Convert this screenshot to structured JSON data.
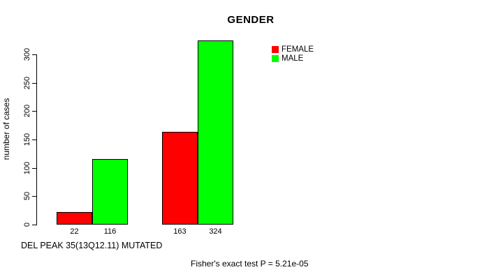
{
  "chart_data": {
    "type": "bar",
    "title": "GENDER",
    "ylabel": "number of cases",
    "xlabel": "DEL PEAK 35(13Q12.11) MUTATED",
    "annotation": "Fisher's exact test P = 5.21e-05",
    "ylim": [
      0,
      300
    ],
    "yticks": [
      0,
      50,
      100,
      150,
      200,
      250,
      300
    ],
    "grid": false,
    "legend_position": "top-right",
    "groups": 2,
    "series": [
      {
        "name": "FEMALE",
        "color": "#ff0000",
        "values": [
          22,
          163
        ]
      },
      {
        "name": "MALE",
        "color": "#00ff00",
        "values": [
          116,
          324
        ]
      }
    ],
    "bar_value_labels": [
      "22",
      "116",
      "163",
      "324"
    ]
  },
  "colors": {
    "axis": "#000000",
    "text": "#000000",
    "background": "#ffffff",
    "bar_border": "#000000"
  }
}
